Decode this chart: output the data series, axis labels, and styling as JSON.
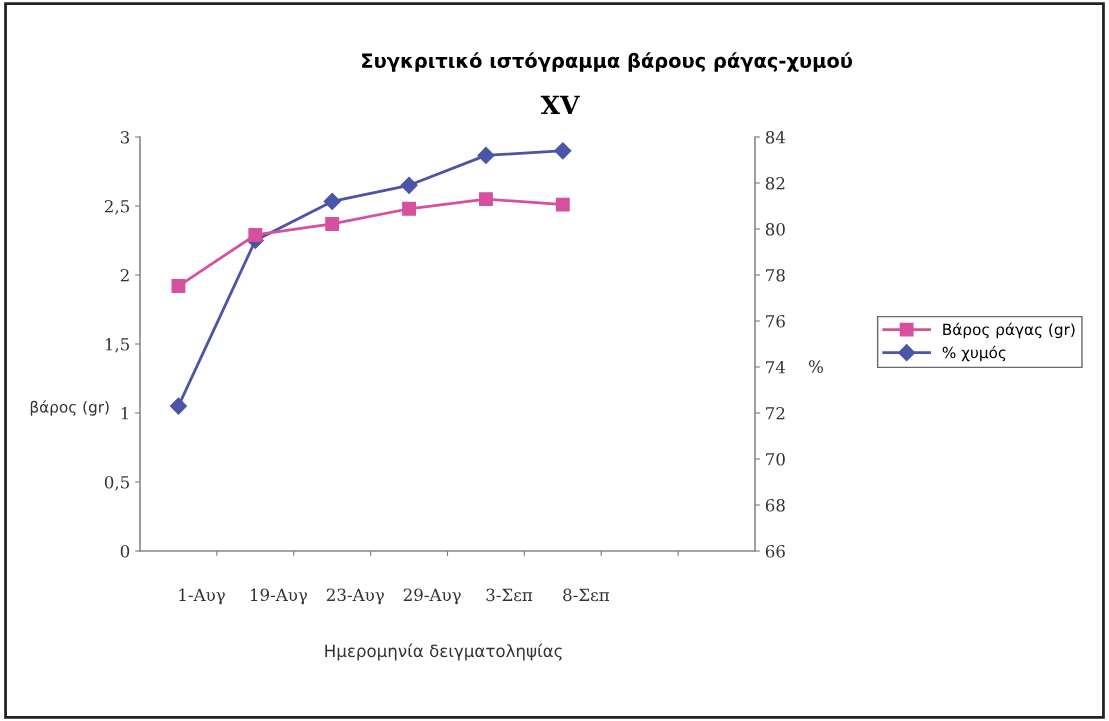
{
  "chart_data": {
    "type": "line",
    "title": "Συγκριτικό ιστόγραμμα βάρους ράγας-χυμού",
    "subtitle": "XV",
    "xlabel": "Ημερομηνία δειγματοληψίας",
    "ylabel": "βάρος (gr)",
    "y2label": "%",
    "categories": [
      "1-Αυγ",
      "19-Αυγ",
      "23-Αυγ",
      "29-Αυγ",
      "3-Σεπ",
      "8-Σεπ",
      null,
      null
    ],
    "series": [
      {
        "name": "Βάρος ράγας (gr)",
        "color": "#d6509e",
        "marker": "square",
        "values": [
          1.92,
          2.29,
          2.37,
          2.48,
          2.55,
          2.51,
          null,
          null
        ]
      },
      {
        "name": "% χυμός",
        "color": "#4a55a8",
        "marker": "diamond",
        "axis": "y2",
        "values": [
          72.3,
          79.5,
          81.2,
          81.9,
          83.2,
          83.4,
          null,
          null
        ]
      }
    ],
    "ylim": [
      0,
      3
    ],
    "yticks": [
      0,
      {
        "value": 0.5,
        "label": "0,5"
      },
      1,
      {
        "value": 1.5,
        "label": "1,5"
      },
      2,
      {
        "value": 2.5,
        "label": "2,5"
      },
      3
    ],
    "y2lim": [
      66,
      84
    ],
    "y2ticks": [
      66,
      68,
      70,
      72,
      74,
      76,
      78,
      80,
      82,
      84
    ],
    "grid": false,
    "legend": "right"
  }
}
